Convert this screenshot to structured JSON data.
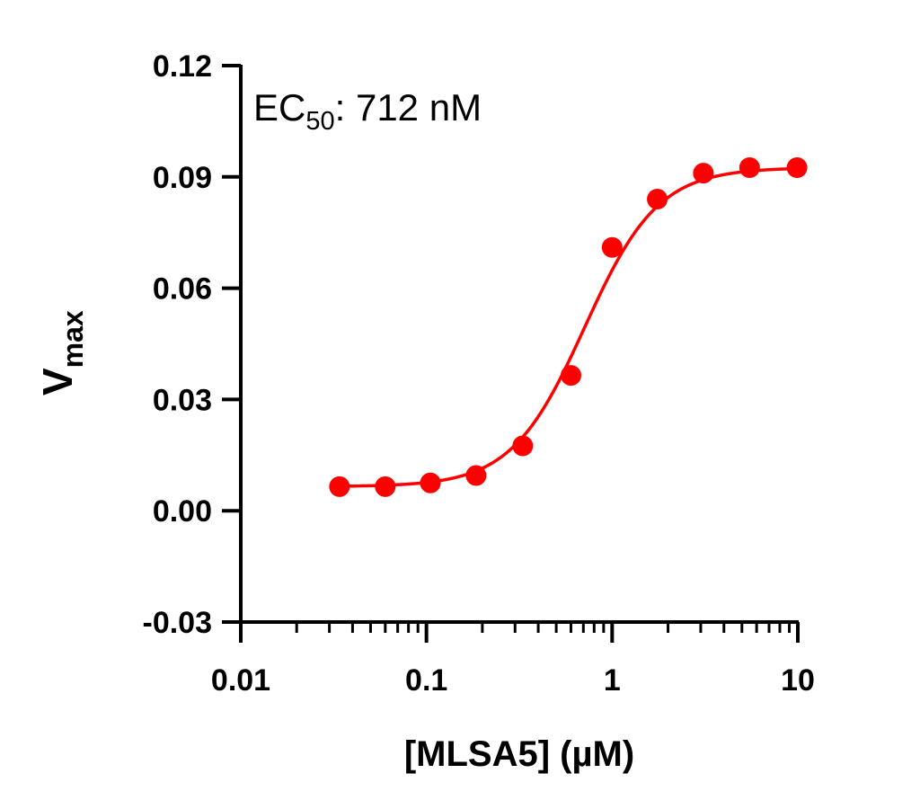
{
  "chart_data": {
    "type": "scatter",
    "xlabel": "[MLSA5] (µM)",
    "ylabel": {
      "main": "V",
      "sub": "max"
    },
    "annotation": {
      "main": "EC",
      "sub": "50",
      "rest": ": 712 nM"
    },
    "x_scale": "log",
    "xlim": [
      0.01,
      10
    ],
    "ylim": [
      -0.03,
      0.12
    ],
    "x_ticks": [
      0.01,
      0.1,
      1,
      10
    ],
    "x_tick_labels": [
      "0.01",
      "0.1",
      "1",
      "10"
    ],
    "y_ticks": [
      -0.03,
      0,
      0.03,
      0.06,
      0.09,
      0.12
    ],
    "y_tick_labels": [
      "-0.03",
      "0.00",
      "0.03",
      "0.06",
      "0.09",
      "0.12"
    ],
    "grid": false,
    "color": "#ff0000",
    "series": [
      {
        "x": [
          0.034,
          0.06,
          0.105,
          0.185,
          0.33,
          0.6,
          1.0,
          1.75,
          3.1,
          5.5,
          9.9
        ],
        "y": [
          0.0065,
          0.0065,
          0.0075,
          0.0095,
          0.0175,
          0.0365,
          0.071,
          0.084,
          0.091,
          0.0925,
          0.0925
        ]
      }
    ],
    "fit": {
      "bottom": 0.0065,
      "top": 0.0925,
      "ec50": 0.712,
      "hill": 2.2
    }
  }
}
